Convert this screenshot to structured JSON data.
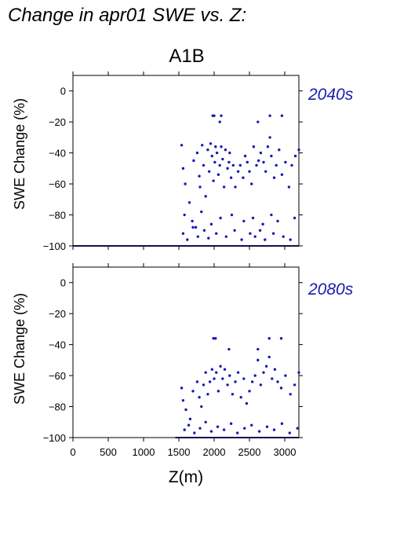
{
  "page": {
    "title": "Change in apr01 SWE vs. Z:",
    "scenario": "A1B",
    "x_axis_label": "Z(m)"
  },
  "colors": {
    "points": "#1a1ab4",
    "period_label": "#1a1ab4",
    "axes": "#000000"
  },
  "chart_data": [
    {
      "type": "scatter",
      "period_label": "2040s",
      "ylabel": "SWE Change (%)",
      "xlim": [
        0,
        3200
      ],
      "ylim": [
        -100,
        10
      ],
      "yticks": [
        0,
        -20,
        -40,
        -60,
        -80,
        -100
      ],
      "xticks": [
        0,
        500,
        1000,
        1500,
        2000,
        2500,
        3000
      ],
      "show_x_tick_labels": false,
      "grid": false,
      "baseline": {
        "y": -100,
        "x": [
          0,
          3200
        ]
      },
      "x": [
        1540,
        1560,
        1590,
        1650,
        1710,
        1740,
        1760,
        1790,
        1800,
        1830,
        1850,
        1880,
        1910,
        1930,
        1950,
        1970,
        1990,
        2010,
        2020,
        2040,
        2060,
        2080,
        2100,
        2120,
        2140,
        2160,
        2190,
        2210,
        2240,
        2270,
        2300,
        2340,
        2370,
        2410,
        2440,
        2470,
        2500,
        2530,
        2560,
        2600,
        2630,
        2660,
        2700,
        2730,
        2760,
        2790,
        2810,
        2850,
        2880,
        2920,
        2960,
        3010,
        3060,
        3100,
        3150,
        3200,
        1980,
        2000,
        2080,
        2100,
        2220,
        2620,
        2790,
        2960,
        1560,
        1620,
        1700,
        1770,
        1860,
        1920,
        2030,
        2170,
        2290,
        2390,
        2510,
        2580,
        2650,
        2720,
        2840,
        2980,
        3080,
        1580,
        1690,
        1820,
        1960,
        2090,
        2250,
        2420,
        2550,
        2690,
        2810,
        2900,
        3140
      ],
      "y": [
        -35,
        -50,
        -60,
        -72,
        -45,
        -88,
        -40,
        -55,
        -62,
        -35,
        -48,
        -68,
        -38,
        -52,
        -34,
        -42,
        -58,
        -46,
        -36,
        -40,
        -54,
        -48,
        -36,
        -44,
        -62,
        -38,
        -50,
        -46,
        -56,
        -48,
        -62,
        -52,
        -48,
        -56,
        -42,
        -46,
        -52,
        -60,
        -36,
        -48,
        -45,
        -40,
        -46,
        -52,
        -36,
        -30,
        -42,
        -56,
        -48,
        -38,
        -54,
        -46,
        -62,
        -48,
        -42,
        -38,
        -16,
        -16,
        -20,
        -16,
        -40,
        -20,
        -16,
        -16,
        -92,
        -96,
        -88,
        -94,
        -90,
        -95,
        -92,
        -94,
        -90,
        -96,
        -92,
        -94,
        -90,
        -96,
        -92,
        -94,
        -96,
        -80,
        -84,
        -78,
        -86,
        -82,
        -80,
        -84,
        -82,
        -86,
        -80,
        -84,
        -82
      ]
    },
    {
      "type": "scatter",
      "period_label": "2080s",
      "ylabel": "SWE Change (%)",
      "xlim": [
        0,
        3200
      ],
      "ylim": [
        -100,
        10
      ],
      "yticks": [
        0,
        -20,
        -40,
        -60,
        -80,
        -100
      ],
      "xticks": [
        0,
        500,
        1000,
        1500,
        2000,
        2500,
        3000
      ],
      "xtick_labels": [
        "0",
        "500",
        "1000",
        "1500",
        "2000",
        "2500",
        "3000"
      ],
      "show_x_tick_labels": true,
      "grid": false,
      "baseline": {
        "y": -100,
        "x": [
          1450,
          3200
        ]
      },
      "x": [
        1540,
        1560,
        1600,
        1660,
        1700,
        1760,
        1790,
        1820,
        1850,
        1880,
        1910,
        1940,
        1970,
        2000,
        2030,
        2060,
        2090,
        2120,
        2150,
        2190,
        2220,
        2260,
        2300,
        2340,
        2380,
        2420,
        2460,
        2500,
        2540,
        2580,
        2620,
        2660,
        2700,
        2740,
        2780,
        2820,
        2860,
        2900,
        2950,
        3010,
        3080,
        3140,
        3200,
        1990,
        2020,
        2210,
        2620,
        2780,
        2950,
        1580,
        1640,
        1720,
        1800,
        1880,
        1960,
        2050,
        2140,
        2240,
        2330,
        2430,
        2530,
        2640,
        2750,
        2850,
        2960,
        3070,
        3180
      ],
      "y": [
        -68,
        -76,
        -82,
        -88,
        -70,
        -64,
        -74,
        -80,
        -66,
        -58,
        -72,
        -64,
        -56,
        -62,
        -58,
        -70,
        -54,
        -62,
        -56,
        -66,
        -60,
        -72,
        -64,
        -58,
        -74,
        -62,
        -78,
        -70,
        -64,
        -60,
        -50,
        -66,
        -58,
        -54,
        -48,
        -62,
        -56,
        -64,
        -68,
        -60,
        -72,
        -66,
        -58,
        -36,
        -36,
        -43,
        -43,
        -36,
        -36,
        -95,
        -92,
        -97,
        -94,
        -90,
        -96,
        -93,
        -95,
        -91,
        -97,
        -94,
        -92,
        -96,
        -93,
        -95,
        -91,
        -97,
        -94
      ]
    }
  ]
}
